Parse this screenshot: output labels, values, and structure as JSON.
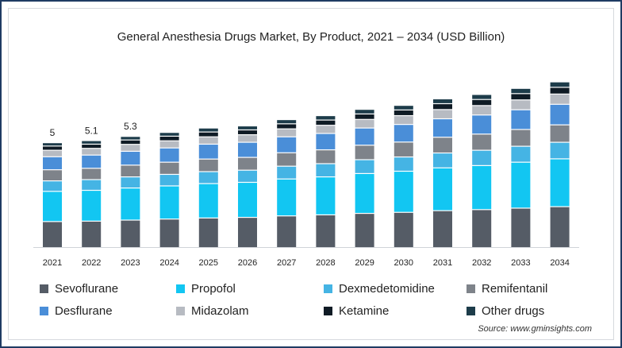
{
  "title": "General Anesthesia Drugs Market, By Product, 2021 – 2034 (USD Billion)",
  "source": "Source: www.gminsights.com",
  "chart_data": {
    "type": "bar",
    "stacked": true,
    "categories": [
      "2021",
      "2022",
      "2023",
      "2024",
      "2025",
      "2026",
      "2027",
      "2028",
      "2029",
      "2030",
      "2031",
      "2032",
      "2033",
      "2034"
    ],
    "totals": [
      5.0,
      5.1,
      5.3,
      5.5,
      5.7,
      5.8,
      6.1,
      6.3,
      6.6,
      6.8,
      7.1,
      7.3,
      7.6,
      7.9
    ],
    "data_labels": [
      "5",
      "5.1",
      "5.3",
      "",
      "",
      "",
      "",
      "",
      "",
      "",
      "",
      "",
      "",
      ""
    ],
    "series": [
      {
        "name": "Sevoflurane",
        "color": "#555c66",
        "values": [
          1.24,
          1.26,
          1.31,
          1.36,
          1.41,
          1.44,
          1.51,
          1.56,
          1.63,
          1.68,
          1.76,
          1.81,
          1.88,
          1.95
        ]
      },
      {
        "name": "Propofol",
        "color": "#12c6f2",
        "values": [
          1.44,
          1.47,
          1.53,
          1.58,
          1.64,
          1.67,
          1.76,
          1.81,
          1.9,
          1.96,
          2.04,
          2.1,
          2.19,
          2.28
        ]
      },
      {
        "name": "Dexmedetomidine",
        "color": "#45b4e4",
        "values": [
          0.5,
          0.51,
          0.53,
          0.55,
          0.57,
          0.58,
          0.61,
          0.63,
          0.66,
          0.68,
          0.71,
          0.73,
          0.76,
          0.79
        ]
      },
      {
        "name": "Remifentanil",
        "color": "#7e838a",
        "values": [
          0.53,
          0.54,
          0.56,
          0.58,
          0.6,
          0.61,
          0.64,
          0.66,
          0.69,
          0.71,
          0.75,
          0.77,
          0.8,
          0.83
        ]
      },
      {
        "name": "Desflurane",
        "color": "#4a8ed8",
        "values": [
          0.62,
          0.63,
          0.66,
          0.68,
          0.71,
          0.72,
          0.76,
          0.78,
          0.82,
          0.84,
          0.88,
          0.91,
          0.94,
          0.98
        ]
      },
      {
        "name": "Midazolam",
        "color": "#b7bbc2",
        "values": [
          0.31,
          0.32,
          0.33,
          0.34,
          0.35,
          0.36,
          0.38,
          0.39,
          0.41,
          0.42,
          0.44,
          0.45,
          0.47,
          0.49
        ]
      },
      {
        "name": "Ketamine",
        "color": "#0f1b25",
        "values": [
          0.2,
          0.2,
          0.21,
          0.22,
          0.23,
          0.23,
          0.24,
          0.25,
          0.26,
          0.27,
          0.28,
          0.29,
          0.3,
          0.32
        ]
      },
      {
        "name": "Other drugs",
        "color": "#1d3c4a",
        "values": [
          0.16,
          0.17,
          0.17,
          0.18,
          0.19,
          0.19,
          0.2,
          0.21,
          0.22,
          0.22,
          0.23,
          0.24,
          0.25,
          0.26
        ]
      }
    ],
    "legend_position": "bottom",
    "grid": false
  }
}
